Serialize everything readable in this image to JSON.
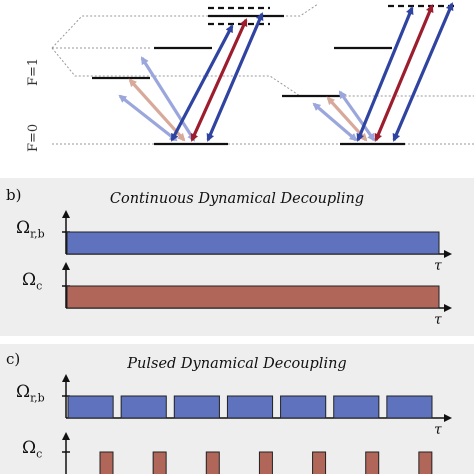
{
  "panel_a": {
    "level_labels": [
      "F=1",
      "F=0"
    ],
    "colors": {
      "blue": "#2f43a0",
      "red": "#9c1e2e",
      "light_blue": "#9aa6dc",
      "light_red": "#d8a99a",
      "guide": "#999999"
    }
  },
  "panel_b": {
    "label": "b)",
    "title": "Continuous Dynamical Decoupling",
    "omega_rb": {
      "symbol": "Ω",
      "sub": "r,b"
    },
    "omega_c": {
      "symbol": "Ω",
      "sub": "c"
    },
    "tau_label": "τ",
    "colors": {
      "blue_fill": "#5e72bd",
      "red_fill": "#b0675a"
    }
  },
  "panel_c": {
    "label": "c)",
    "title": "Pulsed Dynamical Decoupling",
    "omega_rb": {
      "symbol": "Ω",
      "sub": "r,b"
    },
    "omega_c": {
      "symbol": "Ω",
      "sub": "c"
    },
    "tau_label": "τ",
    "pulses_rb": 7,
    "pulses_c": 7,
    "colors": {
      "blue_fill": "#5e72bd",
      "red_fill": "#b0675a"
    }
  }
}
